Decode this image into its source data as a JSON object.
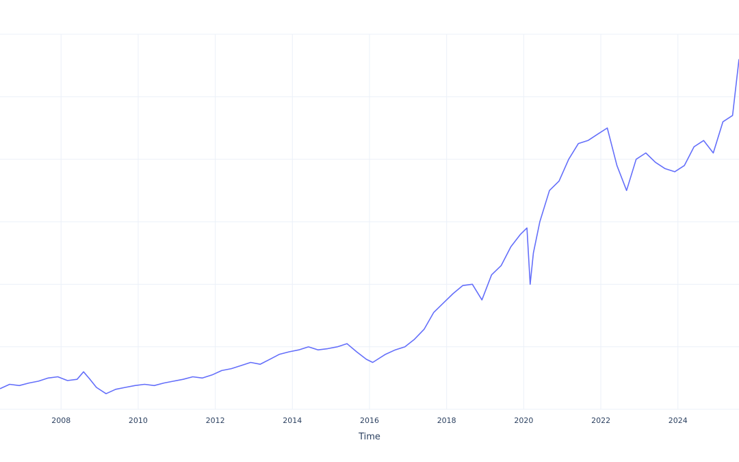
{
  "chart_data": {
    "type": "line",
    "title": "",
    "xlabel": "Time",
    "ylabel": "",
    "grid": true,
    "xlim": [
      "2006-06-01",
      "2025-08-01"
    ],
    "ylim": [
      0,
      600
    ],
    "x_ticks": [
      "2008",
      "2010",
      "2012",
      "2014",
      "2016",
      "2018",
      "2020",
      "2022",
      "2024"
    ],
    "series": [
      {
        "name": "",
        "color": "#636efa",
        "x": [
          "2006-06",
          "2006-09",
          "2006-12",
          "2007-03",
          "2007-06",
          "2007-09",
          "2007-12",
          "2008-03",
          "2008-06",
          "2008-08",
          "2008-10",
          "2008-12",
          "2009-03",
          "2009-06",
          "2009-09",
          "2009-12",
          "2010-03",
          "2010-06",
          "2010-09",
          "2010-12",
          "2011-03",
          "2011-06",
          "2011-09",
          "2011-12",
          "2012-03",
          "2012-06",
          "2012-09",
          "2012-12",
          "2013-03",
          "2013-06",
          "2013-09",
          "2013-12",
          "2014-03",
          "2014-06",
          "2014-09",
          "2014-12",
          "2015-03",
          "2015-06",
          "2015-09",
          "2015-12",
          "2016-02",
          "2016-06",
          "2016-09",
          "2016-12",
          "2017-03",
          "2017-06",
          "2017-09",
          "2017-12",
          "2018-03",
          "2018-06",
          "2018-09",
          "2018-12",
          "2019-03",
          "2019-06",
          "2019-09",
          "2019-12",
          "2020-02",
          "2020-03",
          "2020-04",
          "2020-06",
          "2020-09",
          "2020-12",
          "2021-03",
          "2021-06",
          "2021-09",
          "2021-12",
          "2022-03",
          "2022-06",
          "2022-09",
          "2022-12",
          "2023-03",
          "2023-06",
          "2023-09",
          "2023-12",
          "2024-03",
          "2024-06",
          "2024-09",
          "2024-12",
          "2025-03",
          "2025-06",
          "2025-08"
        ],
        "values": [
          33,
          40,
          38,
          42,
          45,
          50,
          52,
          46,
          48,
          60,
          48,
          35,
          25,
          32,
          35,
          38,
          40,
          38,
          42,
          45,
          48,
          52,
          50,
          55,
          62,
          65,
          70,
          75,
          72,
          80,
          88,
          92,
          95,
          100,
          95,
          97,
          100,
          105,
          92,
          80,
          75,
          88,
          95,
          100,
          112,
          128,
          155,
          170,
          185,
          198,
          200,
          175,
          215,
          230,
          260,
          280,
          290,
          200,
          250,
          300,
          350,
          365,
          400,
          425,
          430,
          440,
          450,
          390,
          350,
          400,
          410,
          395,
          385,
          380,
          390,
          420,
          430,
          410,
          460,
          470,
          560
        ]
      }
    ]
  }
}
